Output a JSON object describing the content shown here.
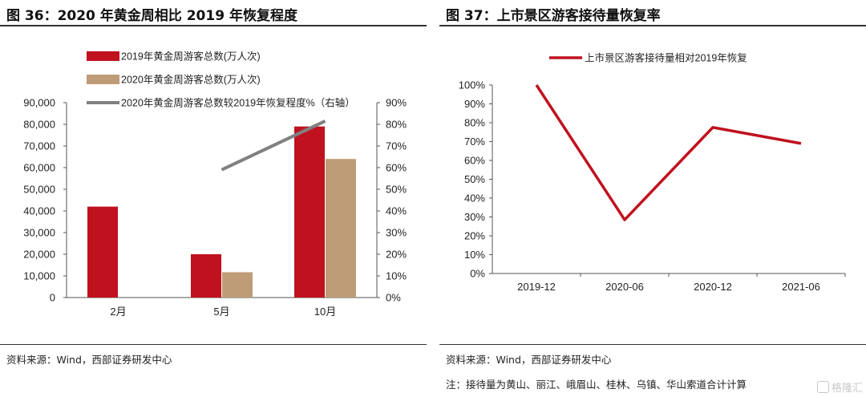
{
  "left": {
    "title": "图 36：2020 年黄金周相比 2019 年恢复程度",
    "source": "资料来源：Wind，西部证券研发中心"
  },
  "right": {
    "title": "图 37：上市景区游客接待量恢复率",
    "source": "资料来源：Wind，西部证券研发中心",
    "note": "注：接待量为黄山、丽江、峨眉山、桂林、乌镇、华山索道合计计算"
  },
  "watermark": "格隆汇",
  "colors": {
    "red": "#C0111F",
    "tan": "#BF9C78",
    "gray": "#808080"
  },
  "chart_data": [
    {
      "type": "bar",
      "categories": [
        "2月",
        "5月",
        "10月"
      ],
      "series": [
        {
          "name": "2019年黄金周游客总数(万人次)",
          "values": [
            42000,
            20000,
            79000
          ],
          "color": "#C0111F"
        },
        {
          "name": "2020年黄金周游客总数(万人次)",
          "values": [
            null,
            11700,
            64000
          ],
          "color": "#BF9C78"
        }
      ],
      "line_series": {
        "name": "2020年黄金周游客总数较2019年恢复程度%（右轴）",
        "values": [
          null,
          59,
          81.5
        ],
        "color": "#808080",
        "axis": "right"
      },
      "ylim": [
        0,
        90000
      ],
      "yticks": [
        "0",
        "10,000",
        "20,000",
        "30,000",
        "40,000",
        "50,000",
        "60,000",
        "70,000",
        "80,000",
        "90,000"
      ],
      "y2lim": [
        0,
        90
      ],
      "y2ticks": [
        "0%",
        "10%",
        "20%",
        "30%",
        "40%",
        "50%",
        "60%",
        "70%",
        "80%",
        "90%"
      ],
      "legend": "top",
      "grid": false
    },
    {
      "type": "line",
      "categories": [
        "2019-12",
        "2020-06",
        "2020-12",
        "2021-06"
      ],
      "series": [
        {
          "name": "上市景区游客接待量相对2019年恢复",
          "values": [
            100,
            28.5,
            77.5,
            69
          ],
          "color": "#C0111F"
        }
      ],
      "ylim": [
        0,
        100
      ],
      "yticks": [
        "0%",
        "10%",
        "20%",
        "30%",
        "40%",
        "50%",
        "60%",
        "70%",
        "80%",
        "90%",
        "100%"
      ],
      "legend": "top",
      "grid": false
    }
  ]
}
